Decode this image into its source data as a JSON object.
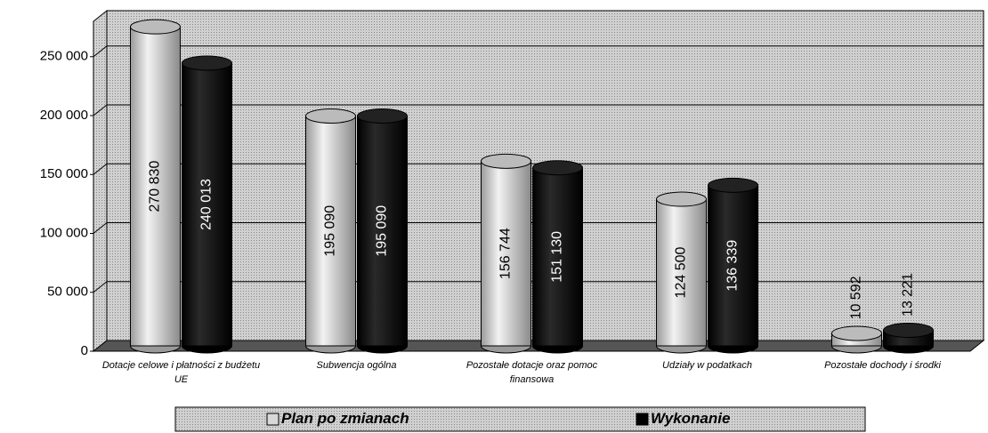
{
  "chart_data": {
    "type": "bar",
    "categories": [
      "Dotacje celowe i płatności z budżetu UE",
      "Subwencja ogólna",
      "Pozostałe dotacje oraz pomoc finansowa",
      "Udziały w podatkach",
      "Pozostałe dochody i środki"
    ],
    "series": [
      {
        "name": "Plan po zmianach",
        "color": "#d8d8d8",
        "values": [
          270830,
          195090,
          156744,
          124500,
          10592
        ],
        "value_labels": [
          "270 830",
          "195 090",
          "156 744",
          "124 500",
          "10 592"
        ]
      },
      {
        "name": "Wykonanie",
        "color": "#000000",
        "values": [
          240013,
          195090,
          151130,
          136339,
          13221
        ],
        "value_labels": [
          "240 013",
          "195 090",
          "151 130",
          "136 339",
          "13 221"
        ]
      }
    ],
    "ylim": [
      0,
      280000
    ],
    "yticks": [
      0,
      {
        "value": 50000,
        "label": "50 000"
      },
      {
        "value": 100000,
        "label": "100 000"
      },
      {
        "value": 150000,
        "label": "150 000"
      },
      {
        "value": 200000,
        "label": "200 000"
      },
      {
        "value": 250000,
        "label": "250 000"
      }
    ],
    "grid": true
  }
}
